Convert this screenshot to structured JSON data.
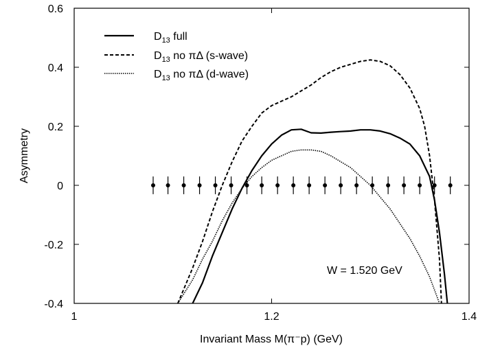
{
  "chart_data": {
    "type": "line",
    "title": "",
    "xlabel": "Invariant Mass M(π⁻p) (GeV)",
    "ylabel": "Asymmetry",
    "xlim": [
      1.0,
      1.4
    ],
    "ylim": [
      -0.4,
      0.6
    ],
    "xticks": [
      1.0,
      1.2,
      1.4
    ],
    "xtick_labels": [
      "1",
      "1.2",
      "1.4"
    ],
    "yticks": [
      -0.4,
      -0.2,
      0.0,
      0.2,
      0.4,
      0.6
    ],
    "ytick_labels": [
      "-0.4",
      "-0.2",
      "0",
      "0.2",
      "0.4",
      "0.6"
    ],
    "grid": false,
    "legend_position": "top-left",
    "annotation": "W = 1.520 GeV",
    "series": [
      {
        "name": "D13 full",
        "legend": {
          "base": "D",
          "sub": "13",
          "rest": " full"
        },
        "style": "solid",
        "x": [
          1.12,
          1.13,
          1.14,
          1.15,
          1.16,
          1.17,
          1.18,
          1.19,
          1.2,
          1.21,
          1.22,
          1.23,
          1.24,
          1.25,
          1.26,
          1.27,
          1.28,
          1.29,
          1.3,
          1.31,
          1.32,
          1.33,
          1.34,
          1.35,
          1.36,
          1.365,
          1.37,
          1.375,
          1.378
        ],
        "y": [
          -0.4,
          -0.33,
          -0.24,
          -0.16,
          -0.08,
          -0.01,
          0.05,
          0.1,
          0.14,
          0.17,
          0.188,
          0.19,
          0.178,
          0.177,
          0.18,
          0.182,
          0.184,
          0.188,
          0.188,
          0.184,
          0.175,
          0.16,
          0.14,
          0.1,
          0.03,
          -0.05,
          -0.16,
          -0.3,
          -0.4
        ]
      },
      {
        "name": "D13 no πΔ (s-wave)",
        "legend": {
          "base": "D",
          "sub": "13",
          "rest": " no πΔ (s-wave)"
        },
        "style": "dashed",
        "x": [
          1.105,
          1.12,
          1.13,
          1.14,
          1.15,
          1.16,
          1.17,
          1.18,
          1.19,
          1.2,
          1.21,
          1.22,
          1.23,
          1.24,
          1.25,
          1.26,
          1.27,
          1.28,
          1.29,
          1.3,
          1.31,
          1.32,
          1.33,
          1.34,
          1.35,
          1.355,
          1.36,
          1.365,
          1.37,
          1.372
        ],
        "y": [
          -0.4,
          -0.28,
          -0.19,
          -0.09,
          0.0,
          0.08,
          0.15,
          0.2,
          0.245,
          0.27,
          0.285,
          0.3,
          0.32,
          0.34,
          0.365,
          0.385,
          0.4,
          0.41,
          0.42,
          0.425,
          0.42,
          0.405,
          0.375,
          0.33,
          0.26,
          0.2,
          0.1,
          -0.05,
          -0.25,
          -0.4
        ]
      },
      {
        "name": "D13 no πΔ (d-wave)",
        "legend": {
          "base": "D",
          "sub": "13",
          "rest": " no πΔ (d-wave)"
        },
        "style": "dotted",
        "x": [
          1.105,
          1.12,
          1.13,
          1.14,
          1.15,
          1.16,
          1.17,
          1.18,
          1.19,
          1.2,
          1.21,
          1.22,
          1.23,
          1.24,
          1.25,
          1.26,
          1.27,
          1.28,
          1.29,
          1.3,
          1.31,
          1.32,
          1.33,
          1.34,
          1.35,
          1.36,
          1.37
        ],
        "y": [
          -0.4,
          -0.32,
          -0.25,
          -0.19,
          -0.12,
          -0.06,
          -0.01,
          0.03,
          0.06,
          0.085,
          0.1,
          0.115,
          0.12,
          0.12,
          0.115,
          0.1,
          0.08,
          0.06,
          0.03,
          0.0,
          -0.04,
          -0.08,
          -0.13,
          -0.18,
          -0.24,
          -0.31,
          -0.4
        ]
      }
    ],
    "points": {
      "name": "data points",
      "x": [
        1.08,
        1.095,
        1.111,
        1.127,
        1.143,
        1.159,
        1.175,
        1.19,
        1.206,
        1.222,
        1.238,
        1.254,
        1.27,
        1.286,
        1.302,
        1.318,
        1.334,
        1.35,
        1.365,
        1.381
      ],
      "y": [
        0,
        0,
        0,
        0,
        0,
        0,
        0,
        0,
        0,
        0,
        0,
        0,
        0,
        0,
        0,
        0,
        0,
        0,
        0,
        0
      ],
      "err": [
        0.03,
        0.03,
        0.03,
        0.03,
        0.03,
        0.03,
        0.03,
        0.03,
        0.03,
        0.03,
        0.03,
        0.03,
        0.03,
        0.03,
        0.03,
        0.03,
        0.03,
        0.03,
        0.03,
        0.03
      ]
    }
  }
}
